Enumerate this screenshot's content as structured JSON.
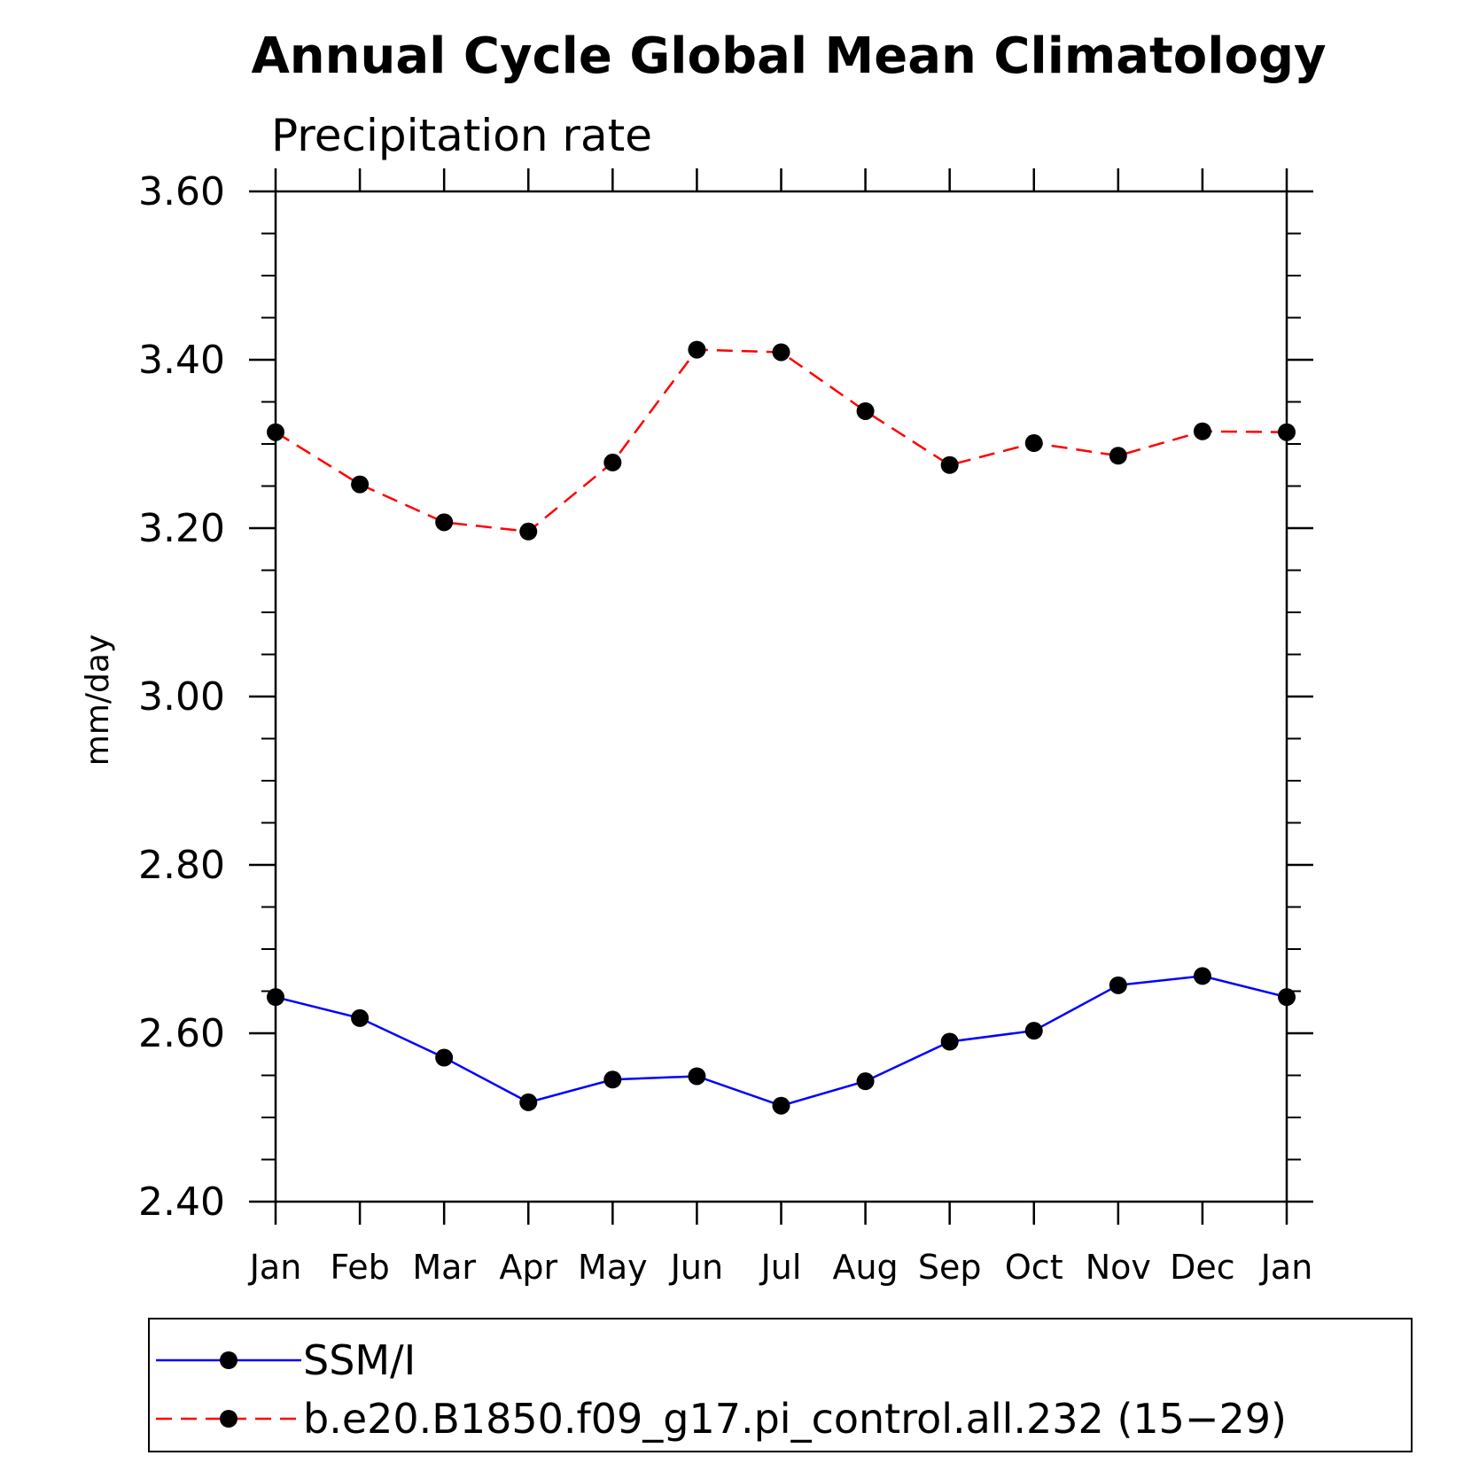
{
  "chart_data": {
    "type": "line",
    "title": "Annual Cycle Global Mean Climatology",
    "subtitle": "Precipitation rate",
    "xlabel": "",
    "ylabel": "mm/day",
    "categories": [
      "Jan",
      "Feb",
      "Mar",
      "Apr",
      "May",
      "Jun",
      "Jul",
      "Aug",
      "Sep",
      "Oct",
      "Nov",
      "Dec",
      "Jan"
    ],
    "ylim": [
      2.4,
      3.6
    ],
    "yticks": [
      "2.40",
      "2.60",
      "2.80",
      "3.00",
      "3.20",
      "3.40",
      "3.60"
    ],
    "grid": false,
    "legend_position": "bottom",
    "series": [
      {
        "name": "SSM/I",
        "color": "#0000ff",
        "dash": "solid",
        "values": [
          2.643,
          2.618,
          2.571,
          2.518,
          2.545,
          2.549,
          2.514,
          2.543,
          2.59,
          2.603,
          2.657,
          2.668,
          2.643
        ]
      },
      {
        "name": "b.e20.B1850.f09_g17.pi_control.all.232 (15−29)",
        "color": "#ff0000",
        "dash": "dashed",
        "values": [
          3.314,
          3.252,
          3.207,
          3.196,
          3.278,
          3.412,
          3.409,
          3.339,
          3.275,
          3.301,
          3.286,
          3.315,
          3.314
        ]
      }
    ]
  }
}
